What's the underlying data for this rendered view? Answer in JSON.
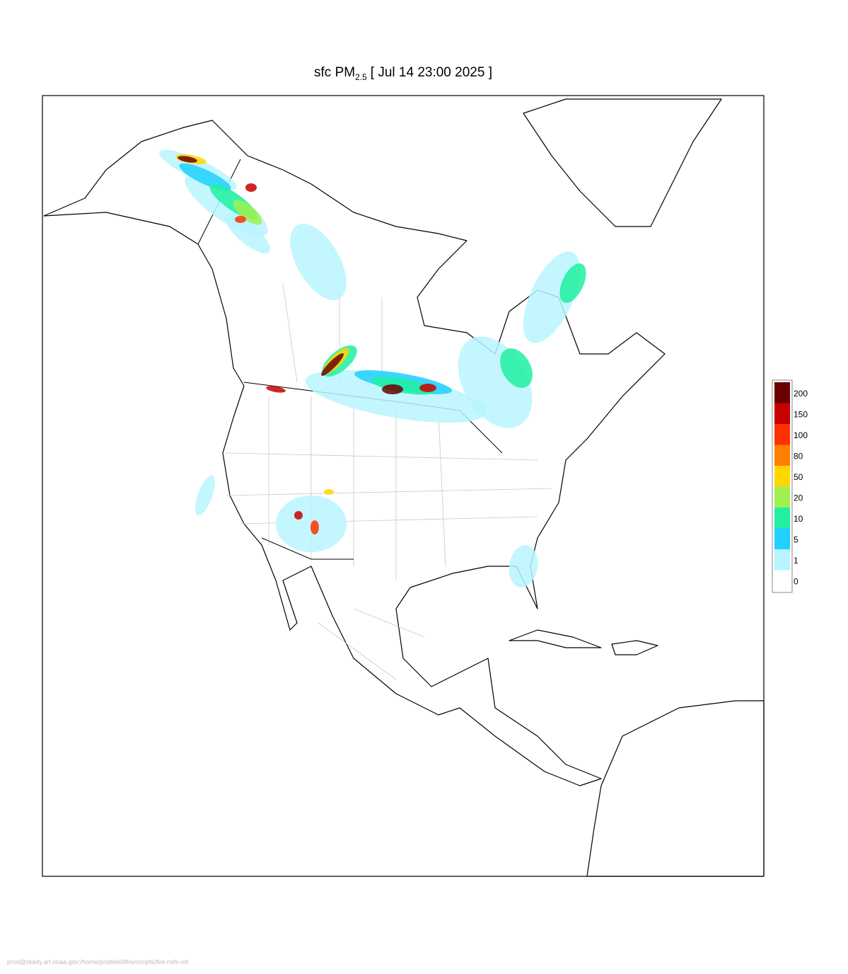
{
  "title": {
    "prefix": "sfc PM",
    "subscript": "2.5",
    "suffix": "[ Jul 14 23:00 2025 ]"
  },
  "legend": {
    "labels": [
      "200",
      "150",
      "100",
      "80",
      "50",
      "20",
      "10",
      "5",
      "1",
      "0"
    ],
    "colors": [
      "#6b0000",
      "#c80000",
      "#ff3000",
      "#ff8000",
      "#ffd700",
      "#a0f050",
      "#20f0a0",
      "#20d0ff",
      "#b8f4ff",
      "#ffffff"
    ]
  },
  "footer": "prod@ready.arl.noaa.gov:/home/prod/wildfire/scripts/fire-nsfs-nrt"
}
